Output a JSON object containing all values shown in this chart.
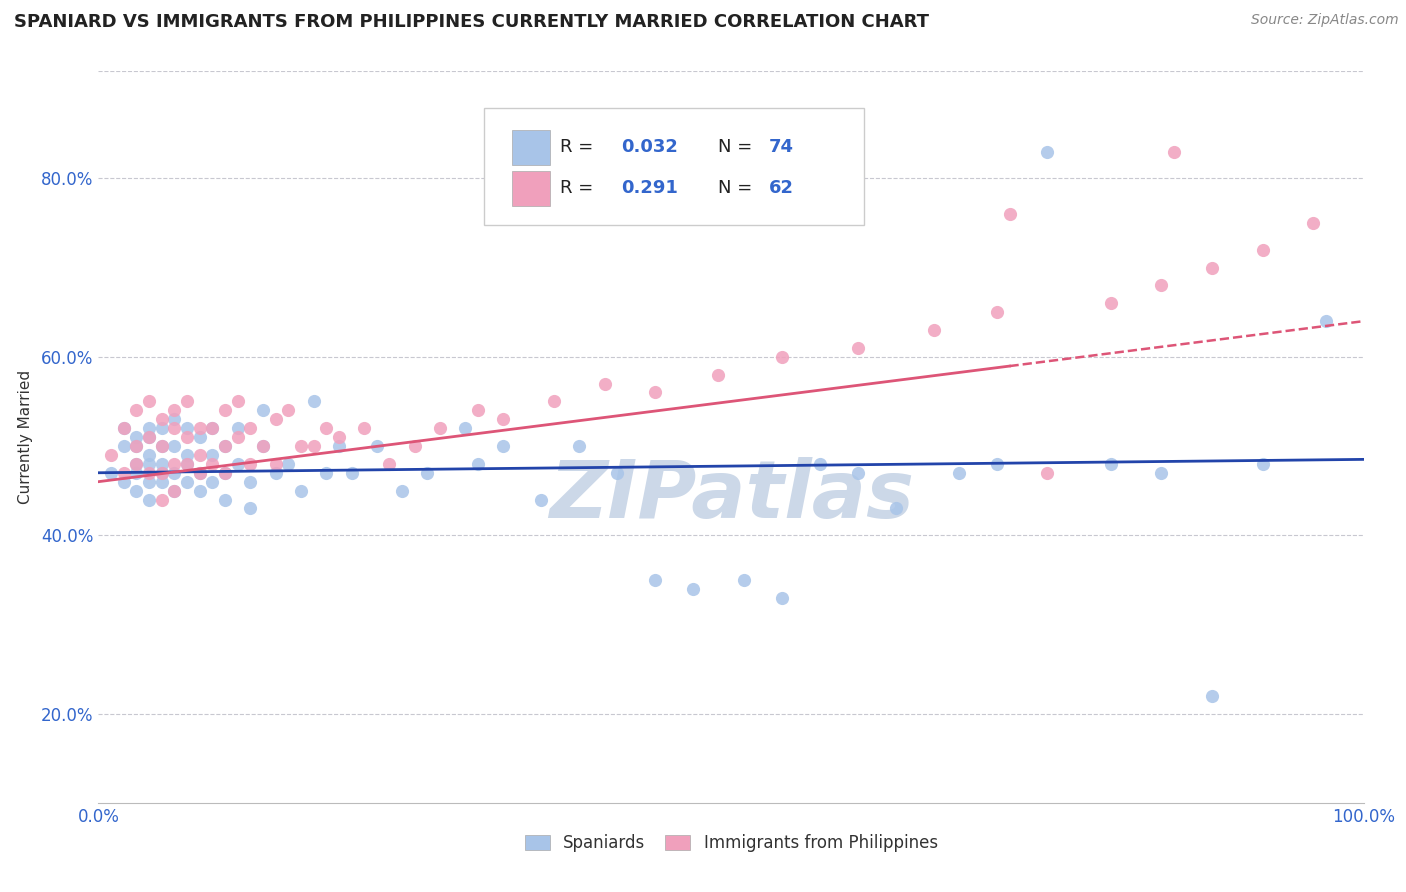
{
  "title": "SPANIARD VS IMMIGRANTS FROM PHILIPPINES CURRENTLY MARRIED CORRELATION CHART",
  "source": "Source: ZipAtlas.com",
  "ylabel": "Currently Married",
  "xlim": [
    0.0,
    1.0
  ],
  "ylim": [
    0.1,
    0.92
  ],
  "xticks": [
    0.0,
    0.25,
    0.5,
    0.75,
    1.0
  ],
  "xtick_labels": [
    "0.0%",
    "",
    "",
    "",
    "100.0%"
  ],
  "ytick_labels": [
    "20.0%",
    "40.0%",
    "60.0%",
    "80.0%"
  ],
  "yticks": [
    0.2,
    0.4,
    0.6,
    0.8
  ],
  "blue_R": 0.032,
  "blue_N": 74,
  "pink_R": 0.291,
  "pink_N": 62,
  "blue_color": "#a8c4e8",
  "pink_color": "#f0a0bc",
  "trend_blue_color": "#2244aa",
  "trend_pink_color": "#dd5577",
  "background_color": "#ffffff",
  "grid_color": "#c8c8d0",
  "title_color": "#222222",
  "watermark_color": "#ccd8e8",
  "tick_color": "#3366cc",
  "blue_x": [
    0.01,
    0.02,
    0.02,
    0.02,
    0.03,
    0.03,
    0.03,
    0.03,
    0.03,
    0.04,
    0.04,
    0.04,
    0.04,
    0.04,
    0.04,
    0.05,
    0.05,
    0.05,
    0.05,
    0.05,
    0.06,
    0.06,
    0.06,
    0.06,
    0.07,
    0.07,
    0.07,
    0.07,
    0.08,
    0.08,
    0.08,
    0.09,
    0.09,
    0.09,
    0.1,
    0.1,
    0.1,
    0.11,
    0.11,
    0.12,
    0.12,
    0.13,
    0.13,
    0.14,
    0.15,
    0.16,
    0.17,
    0.18,
    0.19,
    0.2,
    0.22,
    0.24,
    0.26,
    0.29,
    0.3,
    0.32,
    0.35,
    0.38,
    0.41,
    0.44,
    0.47,
    0.51,
    0.54,
    0.57,
    0.6,
    0.63,
    0.68,
    0.71,
    0.75,
    0.8,
    0.84,
    0.88,
    0.92,
    0.97
  ],
  "blue_y": [
    0.47,
    0.5,
    0.46,
    0.52,
    0.48,
    0.45,
    0.51,
    0.47,
    0.5,
    0.49,
    0.46,
    0.52,
    0.48,
    0.44,
    0.51,
    0.47,
    0.5,
    0.46,
    0.52,
    0.48,
    0.5,
    0.47,
    0.53,
    0.45,
    0.48,
    0.52,
    0.46,
    0.49,
    0.47,
    0.51,
    0.45,
    0.49,
    0.46,
    0.52,
    0.47,
    0.5,
    0.44,
    0.48,
    0.52,
    0.46,
    0.43,
    0.5,
    0.54,
    0.47,
    0.48,
    0.45,
    0.55,
    0.47,
    0.5,
    0.47,
    0.5,
    0.45,
    0.47,
    0.52,
    0.48,
    0.5,
    0.44,
    0.5,
    0.47,
    0.35,
    0.34,
    0.35,
    0.33,
    0.48,
    0.47,
    0.43,
    0.47,
    0.48,
    0.83,
    0.48,
    0.47,
    0.22,
    0.48,
    0.64
  ],
  "pink_x": [
    0.01,
    0.02,
    0.02,
    0.03,
    0.03,
    0.03,
    0.04,
    0.04,
    0.04,
    0.05,
    0.05,
    0.05,
    0.05,
    0.06,
    0.06,
    0.06,
    0.06,
    0.07,
    0.07,
    0.07,
    0.08,
    0.08,
    0.08,
    0.09,
    0.09,
    0.1,
    0.1,
    0.1,
    0.11,
    0.11,
    0.12,
    0.12,
    0.13,
    0.14,
    0.14,
    0.15,
    0.16,
    0.17,
    0.18,
    0.19,
    0.21,
    0.23,
    0.25,
    0.27,
    0.3,
    0.32,
    0.36,
    0.4,
    0.44,
    0.49,
    0.54,
    0.6,
    0.66,
    0.71,
    0.75,
    0.8,
    0.84,
    0.88,
    0.92,
    0.96,
    0.72,
    0.85
  ],
  "pink_y": [
    0.49,
    0.52,
    0.47,
    0.5,
    0.54,
    0.48,
    0.51,
    0.47,
    0.55,
    0.5,
    0.53,
    0.47,
    0.44,
    0.52,
    0.48,
    0.54,
    0.45,
    0.51,
    0.48,
    0.55,
    0.49,
    0.52,
    0.47,
    0.52,
    0.48,
    0.5,
    0.54,
    0.47,
    0.51,
    0.55,
    0.48,
    0.52,
    0.5,
    0.53,
    0.48,
    0.54,
    0.5,
    0.5,
    0.52,
    0.51,
    0.52,
    0.48,
    0.5,
    0.52,
    0.54,
    0.53,
    0.55,
    0.57,
    0.56,
    0.58,
    0.6,
    0.61,
    0.63,
    0.65,
    0.47,
    0.66,
    0.68,
    0.7,
    0.72,
    0.75,
    0.76,
    0.83
  ],
  "blue_trend_x0": 0.0,
  "blue_trend_y0": 0.47,
  "blue_trend_x1": 1.0,
  "blue_trend_y1": 0.485,
  "pink_trend_x0": 0.0,
  "pink_trend_y0": 0.46,
  "pink_trend_x1": 1.0,
  "pink_trend_y1": 0.64
}
